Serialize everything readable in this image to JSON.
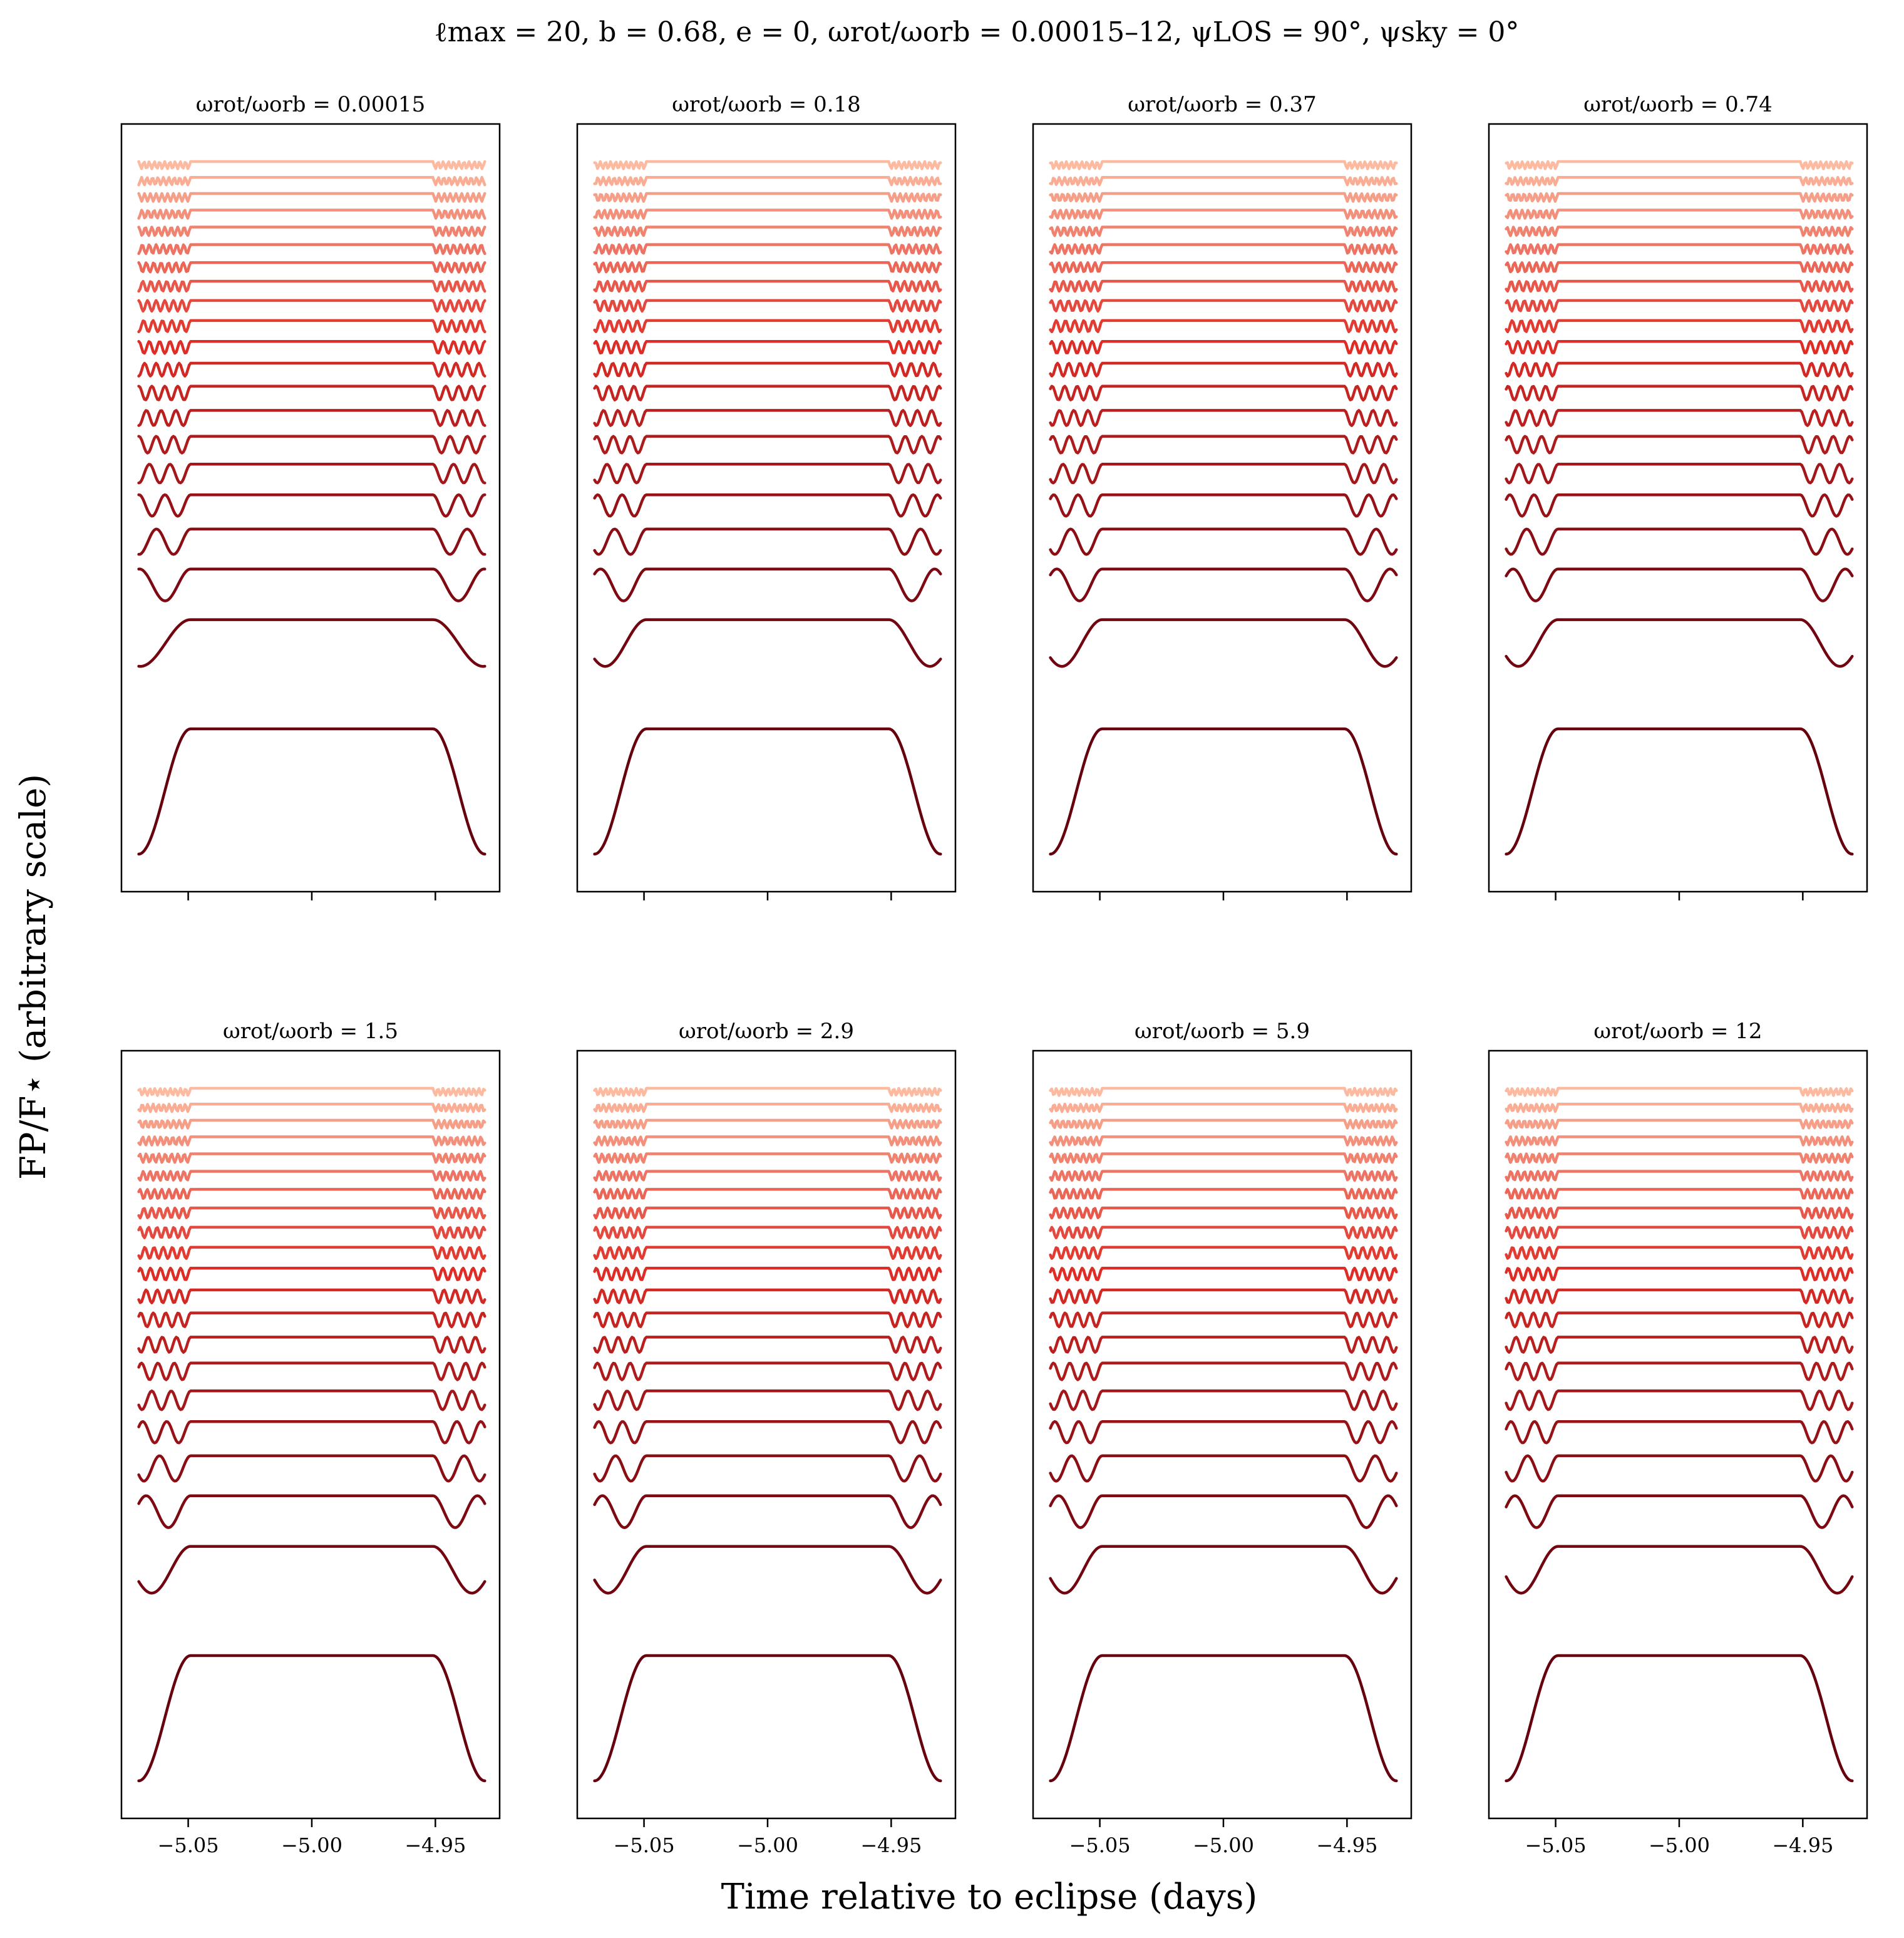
{
  "chart_data": {
    "type": "line",
    "figure_title": "ℓmax = 20, b = 0.68, e = 0, ωrot/ωorb = 0.00015–12, ψLOS = 90°, ψsky = 0°",
    "xlabel": "Time relative to eclipse (days)",
    "ylabel": "FP/F⋆ (arbitrary scale)",
    "xlim": [
      -5.077,
      -4.924
    ],
    "xticks": [
      -5.05,
      -5.0,
      -4.95
    ],
    "xtick_labels": [
      "−5.05",
      "−5.00",
      "−4.95"
    ],
    "ylim_description": "arbitrary scale, curves offset vertically",
    "ingress_egress": {
      "ingress_start": -5.07,
      "ingress_end": -5.049,
      "egress_start": -4.951,
      "egress_end": -4.93
    },
    "num_curves_per_panel": 21,
    "curve_degrees": [
      0,
      1,
      2,
      3,
      4,
      5,
      6,
      7,
      8,
      9,
      10,
      11,
      12,
      13,
      14,
      15,
      16,
      17,
      18,
      19,
      20
    ],
    "colors": {
      "darkest": "#67000d",
      "lightest": "#fcbba1",
      "colormap": "Reds"
    },
    "panels": [
      {
        "title": "ωrot/ωorb = 0.00015",
        "ratio": 0.00015
      },
      {
        "title": "ωrot/ωorb = 0.18",
        "ratio": 0.18
      },
      {
        "title": "ωrot/ωorb = 0.37",
        "ratio": 0.37
      },
      {
        "title": "ωrot/ωorb = 0.74",
        "ratio": 0.74
      },
      {
        "title": "ωrot/ωorb = 1.5",
        "ratio": 1.5
      },
      {
        "title": "ωrot/ωorb = 2.9",
        "ratio": 2.9
      },
      {
        "title": "ωrot/ωorb = 5.9",
        "ratio": 5.9
      },
      {
        "title": "ωrot/ωorb = 12",
        "ratio": 12
      }
    ],
    "grid": false,
    "legend": "none"
  }
}
